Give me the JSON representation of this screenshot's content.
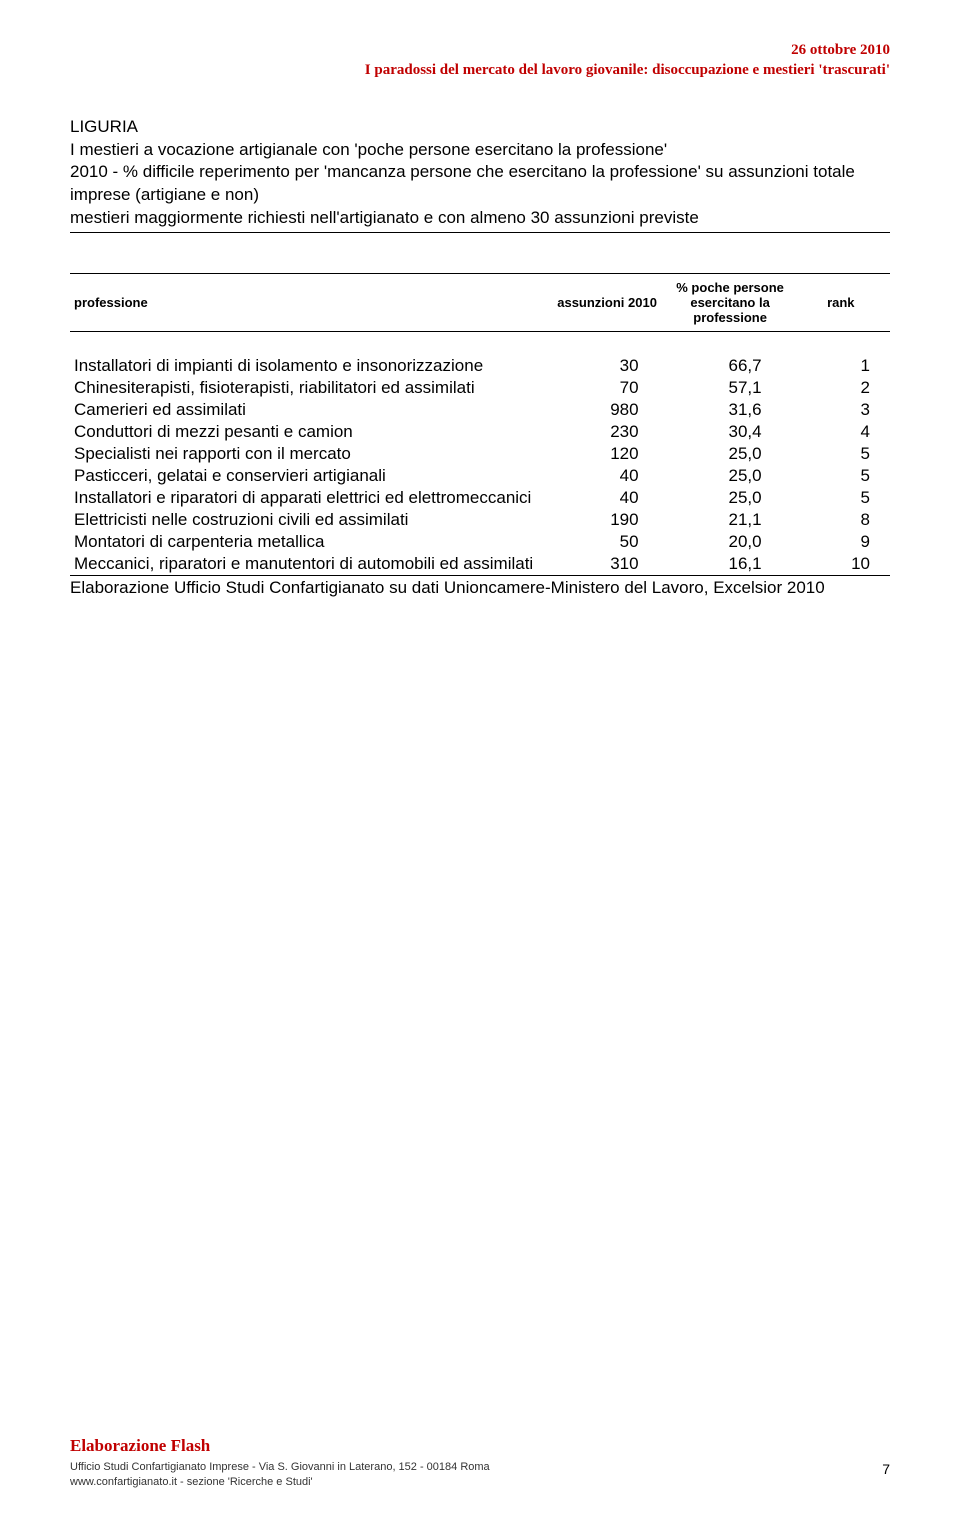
{
  "header": {
    "date": "26 ottobre 2010",
    "title": "I paradossi del mercato del lavoro giovanile: disoccupazione e mestieri 'trascurati'"
  },
  "section": {
    "region": "LIGURIA",
    "line1": "I mestieri a vocazione artigianale con 'poche persone esercitano la professione'",
    "line2": "2010 - % difficile reperimento per 'mancanza persone che esercitano la professione' su assunzioni totale imprese (artigiane e non)",
    "line3": "mestieri maggiormente richiesti nell'artigianato e con almeno 30 assunzioni previste"
  },
  "table": {
    "columns": {
      "c0": "professione",
      "c1": "assunzioni 2010",
      "c2": "% poche persone esercitano la professione",
      "c3": "rank"
    },
    "rows": [
      {
        "p": "Installatori di impianti di isolamento e insonorizzazione",
        "a": "30",
        "pct": "66,7",
        "r": "1"
      },
      {
        "p": "Chinesiterapisti, fisioterapisti, riabilitatori ed assimilati",
        "a": "70",
        "pct": "57,1",
        "r": "2"
      },
      {
        "p": "Camerieri ed assimilati",
        "a": "980",
        "pct": "31,6",
        "r": "3"
      },
      {
        "p": "Conduttori di mezzi pesanti e camion",
        "a": "230",
        "pct": "30,4",
        "r": "4"
      },
      {
        "p": "Specialisti nei rapporti con il mercato",
        "a": "120",
        "pct": "25,0",
        "r": "5"
      },
      {
        "p": "Pasticceri, gelatai e conservieri artigianali",
        "a": "40",
        "pct": "25,0",
        "r": "5"
      },
      {
        "p": "Installatori e riparatori di apparati elettrici ed elettromeccanici",
        "a": "40",
        "pct": "25,0",
        "r": "5"
      },
      {
        "p": "Elettricisti nelle costruzioni civili ed assimilati",
        "a": "190",
        "pct": "21,1",
        "r": "8"
      },
      {
        "p": "Montatori di carpenteria metallica",
        "a": "50",
        "pct": "20,0",
        "r": "9"
      },
      {
        "p": "Meccanici, riparatori e manutentori di automobili ed assimilati",
        "a": "310",
        "pct": "16,1",
        "r": "10"
      }
    ],
    "source": "Elaborazione Ufficio Studi Confartigianato su dati Unioncamere-Ministero del Lavoro, Excelsior 2010"
  },
  "footer": {
    "flash": "Elaborazione Flash",
    "line1": "Ufficio Studi Confartigianato Imprese - Via S. Giovanni in Laterano, 152 - 00184 Roma",
    "line2": "www.confartigianato.it - sezione 'Ricerche e Studi'",
    "pagenum": "7"
  }
}
